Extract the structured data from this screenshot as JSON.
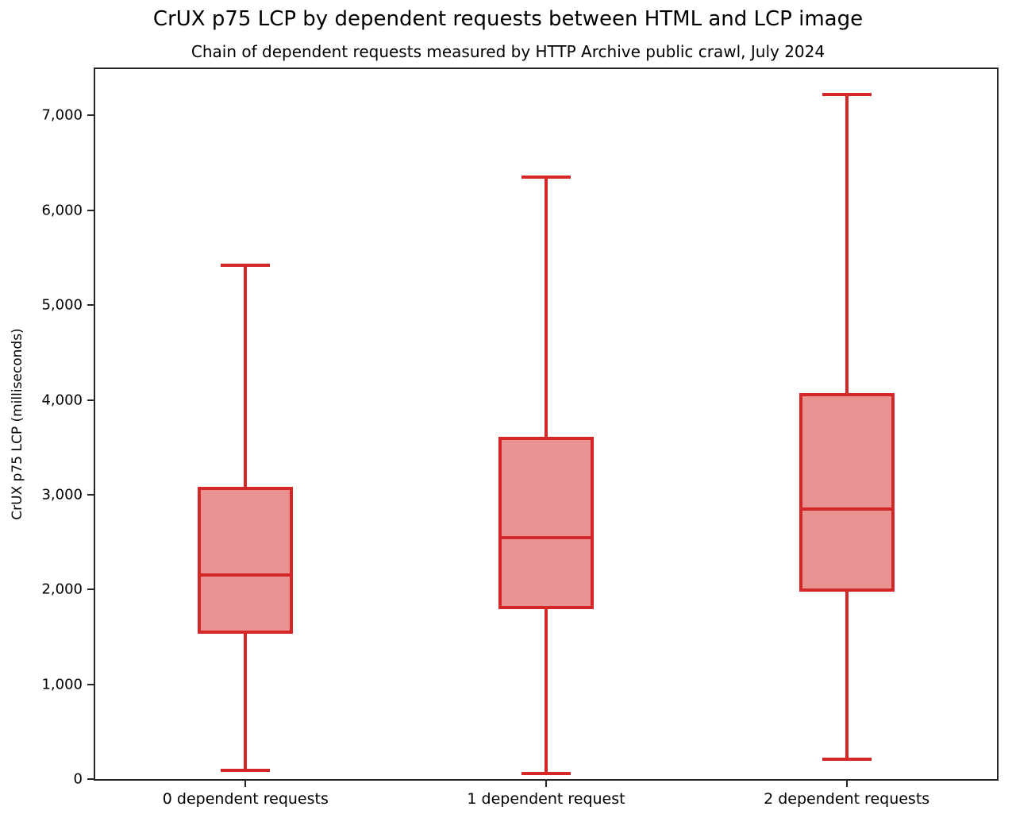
{
  "title": "CrUX p75 LCP by dependent requests between HTML and LCP image",
  "subtitle": "Chain of dependent requests measured by HTTP Archive public crawl, July 2024",
  "chart_data": {
    "type": "boxplot",
    "title": "CrUX p75 LCP by dependent requests between HTML and LCP image",
    "subtitle": "Chain of dependent requests measured by HTTP Archive public crawl, July 2024",
    "xlabel": "",
    "ylabel": "CrUX p75 LCP (milliseconds)",
    "ylim": [
      0,
      7490
    ],
    "yticks": [
      0,
      1000,
      2000,
      3000,
      4000,
      5000,
      6000,
      7000
    ],
    "ytick_labels": [
      "0",
      "1,000",
      "2,000",
      "3,000",
      "4,000",
      "5,000",
      "6,000",
      "7,000"
    ],
    "grid": false,
    "legend": false,
    "categories": [
      "0 dependent requests",
      "1 dependent request",
      "2 dependent requests"
    ],
    "series": [
      {
        "category": "0 dependent requests",
        "whisker_low": 90,
        "q1": 1530,
        "median": 2150,
        "q3": 3080,
        "whisker_high": 5420
      },
      {
        "category": "1 dependent request",
        "whisker_low": 60,
        "q1": 1790,
        "median": 2550,
        "q3": 3610,
        "whisker_high": 6350
      },
      {
        "category": "2 dependent requests",
        "whisker_low": 210,
        "q1": 1980,
        "median": 2850,
        "q3": 4070,
        "whisker_high": 7220
      }
    ],
    "colors": {
      "box_stroke": "#d62728",
      "box_fill": "rgba(214,39,40,0.5)",
      "spine": "#262626",
      "text": "#000000"
    }
  }
}
